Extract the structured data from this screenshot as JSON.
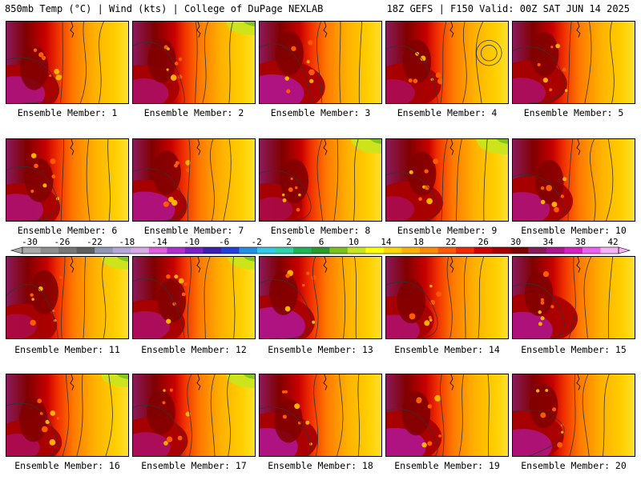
{
  "header": {
    "left_title": "850mb Temp (°C) | Wind (kts) | College of DuPage NEXLAB",
    "right_title": "18Z GEFS | F150 Valid: 00Z SAT JUN 14 2025"
  },
  "panels": [
    {
      "caption": "Ensemble Member: 1",
      "hot": 0.9,
      "warmth": 0.6
    },
    {
      "caption": "Ensemble Member: 2",
      "hot": 0.7,
      "warmth": 0.4
    },
    {
      "caption": "Ensemble Member: 3",
      "hot": 1.0,
      "warmth": 0.5
    },
    {
      "caption": "Ensemble Member: 4",
      "hot": 0.6,
      "warmth": 0.5
    },
    {
      "caption": "Ensemble Member: 5",
      "hot": 0.7,
      "warmth": 0.55
    },
    {
      "caption": "Ensemble Member: 6",
      "hot": 0.8,
      "warmth": 0.55
    },
    {
      "caption": "Ensemble Member: 7",
      "hot": 0.95,
      "warmth": 0.65
    },
    {
      "caption": "Ensemble Member: 8",
      "hot": 0.5,
      "warmth": 0.35
    },
    {
      "caption": "Ensemble Member: 9",
      "hot": 0.55,
      "warmth": 0.3
    },
    {
      "caption": "Ensemble Member: 10",
      "hot": 0.85,
      "warmth": 0.5
    },
    {
      "caption": "Ensemble Member: 11",
      "hot": 0.5,
      "warmth": 0.45
    },
    {
      "caption": "Ensemble Member: 12",
      "hot": 0.7,
      "warmth": 0.45
    },
    {
      "caption": "Ensemble Member: 13",
      "hot": 1.0,
      "warmth": 0.6
    },
    {
      "caption": "Ensemble Member: 14",
      "hot": 0.75,
      "warmth": 0.55
    },
    {
      "caption": "Ensemble Member: 15",
      "hot": 0.95,
      "warmth": 0.5
    },
    {
      "caption": "Ensemble Member: 16",
      "hot": 0.6,
      "warmth": 0.45
    },
    {
      "caption": "Ensemble Member: 17",
      "hot": 0.7,
      "warmth": 0.4
    },
    {
      "caption": "Ensemble Member: 18",
      "hot": 1.0,
      "warmth": 0.6
    },
    {
      "caption": "Ensemble Member: 19",
      "hot": 1.0,
      "warmth": 0.55
    },
    {
      "caption": "Ensemble Member: 20",
      "hot": 0.9,
      "warmth": 0.5
    }
  ],
  "colorbar": {
    "labels": [
      "-30",
      "-26",
      "-22",
      "-18",
      "-14",
      "-10",
      "-6",
      "-2",
      "2",
      "6",
      "10",
      "14",
      "18",
      "22",
      "26",
      "30",
      "34",
      "38",
      "42"
    ],
    "colors": [
      "#a9a9a9",
      "#8e8e8e",
      "#767676",
      "#5e5e5e",
      "#8f97b5",
      "#b4a6d8",
      "#d8a8e8",
      "#e25ce0",
      "#b12fd0",
      "#7a1fc8",
      "#3a1fb0",
      "#2240d8",
      "#1f8fe8",
      "#33c8e8",
      "#2ed2a8",
      "#1db455",
      "#2a9a2a",
      "#78c21c",
      "#c8e61e",
      "#ffff00",
      "#ffd700",
      "#ffb000",
      "#ff8a00",
      "#ff5a00",
      "#f02800",
      "#d00000",
      "#a80000",
      "#800000",
      "#8b1a5a",
      "#b0158f",
      "#d81fc0",
      "#f060f0",
      "#f9b0f7"
    ],
    "contour_color": "#333333"
  }
}
